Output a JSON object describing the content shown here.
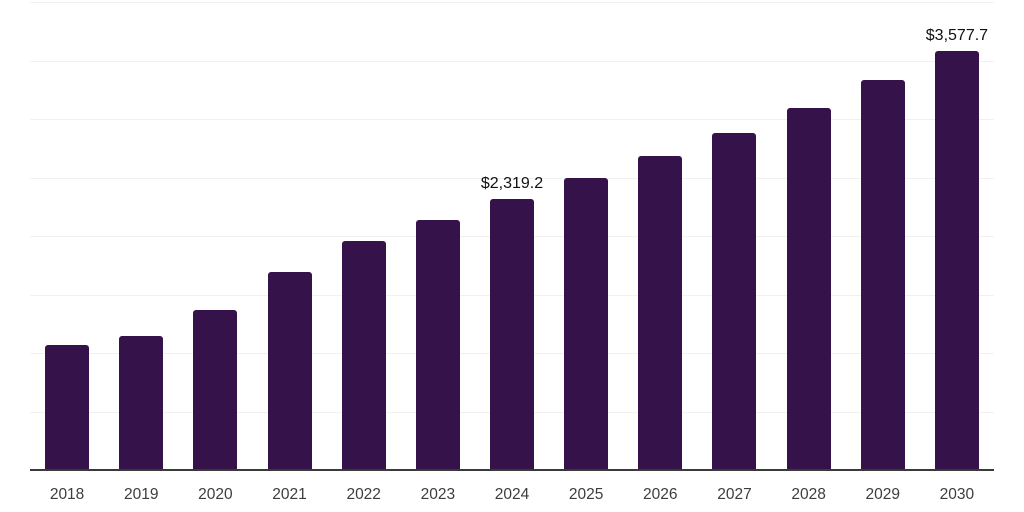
{
  "chart": {
    "background_color": "#ffffff",
    "bar_color": "#36124B",
    "grid_color": "#f0f0f0",
    "axis_color": "#3a3a3a",
    "tick_label_color": "#3d3d3d",
    "data_label_color": "#111111"
  },
  "chart_data": {
    "type": "bar",
    "title": "",
    "xlabel": "",
    "ylabel": "",
    "categories": [
      "2018",
      "2019",
      "2020",
      "2021",
      "2022",
      "2023",
      "2024",
      "2025",
      "2026",
      "2027",
      "2028",
      "2029",
      "2030"
    ],
    "values": [
      1065,
      1146,
      1368,
      1696,
      1954,
      2139,
      2319.2,
      2494,
      2681,
      2882,
      3098,
      3330,
      3577.7
    ],
    "data_labels": [
      "",
      "",
      "",
      "",
      "",
      "",
      "$2,319.2",
      "",
      "",
      "",
      "",
      "",
      "$3,577.7"
    ],
    "ylim": [
      0,
      4000
    ],
    "grid_step": 500,
    "grid": "horizontal-only",
    "y_axis_labels": "hidden",
    "legend": "none"
  }
}
